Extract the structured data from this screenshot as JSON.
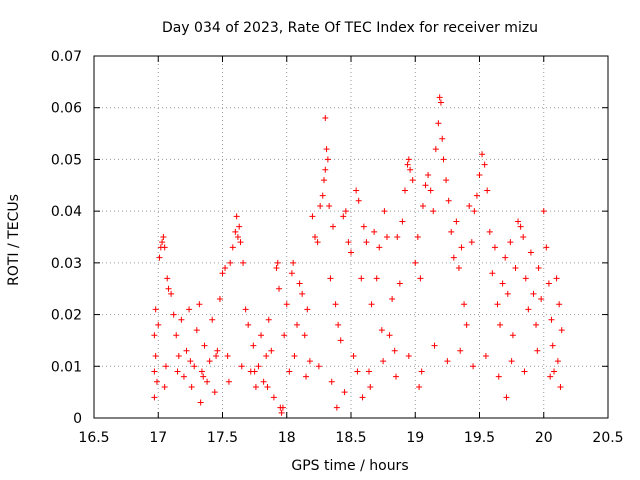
{
  "chart_data": {
    "type": "scatter",
    "title": "Day 034 of 2023, Rate Of TEC Index for receiver mizu",
    "xlabel": "GPS time / hours",
    "ylabel": "ROTI / TECUs",
    "xlim": [
      16.5,
      20.5
    ],
    "ylim": [
      0,
      0.07
    ],
    "xticks": [
      "16.5",
      "17",
      "17.5",
      "18",
      "18.5",
      "19",
      "19.5",
      "20",
      "20.5"
    ],
    "yticks": [
      "0",
      "0.01",
      "0.02",
      "0.03",
      "0.04",
      "0.05",
      "0.06",
      "0.07"
    ],
    "grid": true,
    "marker": "+",
    "series": [
      {
        "name": "ROTI",
        "color": "#ff0000",
        "points": [
          [
            16.97,
            0.004
          ],
          [
            16.97,
            0.009
          ],
          [
            16.97,
            0.016
          ],
          [
            16.98,
            0.021
          ],
          [
            16.98,
            0.012
          ],
          [
            16.99,
            0.007
          ],
          [
            17.0,
            0.018
          ],
          [
            17.01,
            0.031
          ],
          [
            17.02,
            0.033
          ],
          [
            17.03,
            0.034
          ],
          [
            17.04,
            0.035
          ],
          [
            17.05,
            0.033
          ],
          [
            17.06,
            0.01
          ],
          [
            17.07,
            0.027
          ],
          [
            17.08,
            0.025
          ],
          [
            17.1,
            0.024
          ],
          [
            17.12,
            0.02
          ],
          [
            17.14,
            0.016
          ],
          [
            17.16,
            0.012
          ],
          [
            17.18,
            0.019
          ],
          [
            17.2,
            0.008
          ],
          [
            17.22,
            0.013
          ],
          [
            17.24,
            0.021
          ],
          [
            17.26,
            0.006
          ],
          [
            17.28,
            0.01
          ],
          [
            17.3,
            0.017
          ],
          [
            17.32,
            0.022
          ],
          [
            17.34,
            0.009
          ],
          [
            17.36,
            0.014
          ],
          [
            17.38,
            0.007
          ],
          [
            17.4,
            0.011
          ],
          [
            17.42,
            0.019
          ],
          [
            17.44,
            0.005
          ],
          [
            17.46,
            0.013
          ],
          [
            17.48,
            0.023
          ],
          [
            17.5,
            0.028
          ],
          [
            17.52,
            0.029
          ],
          [
            17.54,
            0.012
          ],
          [
            17.56,
            0.03
          ],
          [
            17.58,
            0.033
          ],
          [
            17.6,
            0.036
          ],
          [
            17.61,
            0.039
          ],
          [
            17.62,
            0.035
          ],
          [
            17.63,
            0.037
          ],
          [
            17.64,
            0.034
          ],
          [
            17.66,
            0.03
          ],
          [
            17.68,
            0.021
          ],
          [
            17.7,
            0.018
          ],
          [
            17.72,
            0.009
          ],
          [
            17.74,
            0.014
          ],
          [
            17.76,
            0.006
          ],
          [
            17.78,
            0.01
          ],
          [
            17.8,
            0.016
          ],
          [
            17.82,
            0.007
          ],
          [
            17.84,
            0.012
          ],
          [
            17.86,
            0.019
          ],
          [
            17.88,
            0.013
          ],
          [
            17.9,
            0.004
          ],
          [
            17.92,
            0.029
          ],
          [
            17.93,
            0.03
          ],
          [
            17.94,
            0.025
          ],
          [
            17.95,
            0.002
          ],
          [
            17.96,
            0.001
          ],
          [
            17.97,
            0.002
          ],
          [
            17.98,
            0.016
          ],
          [
            18.0,
            0.022
          ],
          [
            18.02,
            0.009
          ],
          [
            18.04,
            0.028
          ],
          [
            18.05,
            0.03
          ],
          [
            18.06,
            0.012
          ],
          [
            18.08,
            0.018
          ],
          [
            18.1,
            0.026
          ],
          [
            18.12,
            0.024
          ],
          [
            18.14,
            0.016
          ],
          [
            18.16,
            0.021
          ],
          [
            18.18,
            0.011
          ],
          [
            18.2,
            0.039
          ],
          [
            18.22,
            0.035
          ],
          [
            18.24,
            0.034
          ],
          [
            18.26,
            0.041
          ],
          [
            18.28,
            0.043
          ],
          [
            18.29,
            0.046
          ],
          [
            18.3,
            0.048
          ],
          [
            18.31,
            0.052
          ],
          [
            18.3,
            0.058
          ],
          [
            18.32,
            0.05
          ],
          [
            18.33,
            0.041
          ],
          [
            18.34,
            0.027
          ],
          [
            18.36,
            0.037
          ],
          [
            18.38,
            0.022
          ],
          [
            18.4,
            0.018
          ],
          [
            18.42,
            0.015
          ],
          [
            18.44,
            0.039
          ],
          [
            18.46,
            0.04
          ],
          [
            18.48,
            0.034
          ],
          [
            18.5,
            0.032
          ],
          [
            18.52,
            0.012
          ],
          [
            18.54,
            0.044
          ],
          [
            18.56,
            0.042
          ],
          [
            18.58,
            0.027
          ],
          [
            18.6,
            0.037
          ],
          [
            18.62,
            0.034
          ],
          [
            18.64,
            0.009
          ],
          [
            18.66,
            0.022
          ],
          [
            18.68,
            0.036
          ],
          [
            18.7,
            0.027
          ],
          [
            18.72,
            0.033
          ],
          [
            18.74,
            0.017
          ],
          [
            18.76,
            0.04
          ],
          [
            18.78,
            0.035
          ],
          [
            18.8,
            0.016
          ],
          [
            18.82,
            0.023
          ],
          [
            18.84,
            0.013
          ],
          [
            18.86,
            0.035
          ],
          [
            18.88,
            0.026
          ],
          [
            18.9,
            0.038
          ],
          [
            18.92,
            0.044
          ],
          [
            18.94,
            0.049
          ],
          [
            18.95,
            0.05
          ],
          [
            18.96,
            0.048
          ],
          [
            18.98,
            0.046
          ],
          [
            19.0,
            0.03
          ],
          [
            19.02,
            0.035
          ],
          [
            19.04,
            0.027
          ],
          [
            19.06,
            0.041
          ],
          [
            19.08,
            0.045
          ],
          [
            19.1,
            0.047
          ],
          [
            19.12,
            0.044
          ],
          [
            19.14,
            0.04
          ],
          [
            19.16,
            0.052
          ],
          [
            19.18,
            0.057
          ],
          [
            19.19,
            0.062
          ],
          [
            19.2,
            0.061
          ],
          [
            19.21,
            0.054
          ],
          [
            19.22,
            0.05
          ],
          [
            19.24,
            0.046
          ],
          [
            19.26,
            0.042
          ],
          [
            19.28,
            0.036
          ],
          [
            19.3,
            0.031
          ],
          [
            19.32,
            0.038
          ],
          [
            19.34,
            0.029
          ],
          [
            19.36,
            0.033
          ],
          [
            19.38,
            0.022
          ],
          [
            19.4,
            0.018
          ],
          [
            19.42,
            0.041
          ],
          [
            19.44,
            0.034
          ],
          [
            19.46,
            0.04
          ],
          [
            19.48,
            0.043
          ],
          [
            19.5,
            0.047
          ],
          [
            19.52,
            0.051
          ],
          [
            19.54,
            0.049
          ],
          [
            19.56,
            0.044
          ],
          [
            19.58,
            0.036
          ],
          [
            19.6,
            0.028
          ],
          [
            19.62,
            0.033
          ],
          [
            19.64,
            0.022
          ],
          [
            19.66,
            0.018
          ],
          [
            19.68,
            0.026
          ],
          [
            19.7,
            0.031
          ],
          [
            19.72,
            0.024
          ],
          [
            19.74,
            0.034
          ],
          [
            19.76,
            0.016
          ],
          [
            19.78,
            0.029
          ],
          [
            19.8,
            0.038
          ],
          [
            19.82,
            0.037
          ],
          [
            19.84,
            0.035
          ],
          [
            19.86,
            0.027
          ],
          [
            19.88,
            0.021
          ],
          [
            19.9,
            0.032
          ],
          [
            19.92,
            0.024
          ],
          [
            19.94,
            0.018
          ],
          [
            19.96,
            0.029
          ],
          [
            19.98,
            0.023
          ],
          [
            20.0,
            0.04
          ],
          [
            20.02,
            0.033
          ],
          [
            20.04,
            0.026
          ],
          [
            20.06,
            0.019
          ],
          [
            20.08,
            0.009
          ],
          [
            20.1,
            0.027
          ],
          [
            20.12,
            0.022
          ],
          [
            20.13,
            0.006
          ],
          [
            20.14,
            0.017
          ],
          [
            17.05,
            0.006
          ],
          [
            17.15,
            0.009
          ],
          [
            17.25,
            0.011
          ],
          [
            17.35,
            0.008
          ],
          [
            17.45,
            0.012
          ],
          [
            17.55,
            0.007
          ],
          [
            17.65,
            0.01
          ],
          [
            17.75,
            0.009
          ],
          [
            17.85,
            0.006
          ],
          [
            18.15,
            0.008
          ],
          [
            18.25,
            0.01
          ],
          [
            18.35,
            0.007
          ],
          [
            18.45,
            0.005
          ],
          [
            18.55,
            0.009
          ],
          [
            18.65,
            0.006
          ],
          [
            18.75,
            0.011
          ],
          [
            18.85,
            0.008
          ],
          [
            18.95,
            0.012
          ],
          [
            19.05,
            0.009
          ],
          [
            19.15,
            0.014
          ],
          [
            19.25,
            0.011
          ],
          [
            19.35,
            0.013
          ],
          [
            19.45,
            0.01
          ],
          [
            19.55,
            0.012
          ],
          [
            19.65,
            0.008
          ],
          [
            19.75,
            0.011
          ],
          [
            19.85,
            0.009
          ],
          [
            19.95,
            0.013
          ],
          [
            20.05,
            0.008
          ],
          [
            20.11,
            0.011
          ],
          [
            20.07,
            0.014
          ],
          [
            19.71,
            0.004
          ],
          [
            18.39,
            0.002
          ],
          [
            17.33,
            0.003
          ],
          [
            18.59,
            0.004
          ],
          [
            19.03,
            0.006
          ]
        ]
      }
    ]
  }
}
